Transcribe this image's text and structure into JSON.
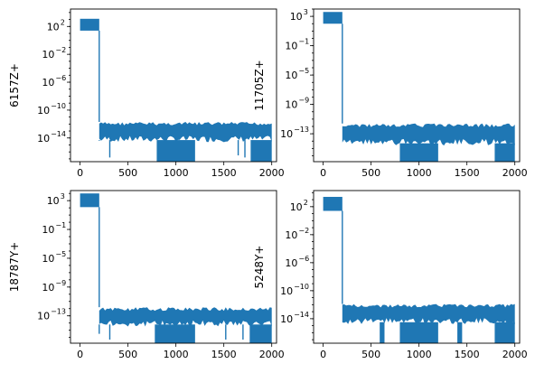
{
  "chart_data": [
    {
      "type": "line",
      "ylabel": "6157Z+",
      "yscale": "log",
      "xlim": [
        -100,
        2050
      ],
      "ylim_exp": [
        -17.4,
        4.5
      ],
      "xticks": [
        0,
        500,
        1000,
        1500,
        2000
      ],
      "yticks": [
        {
          "exp": 2,
          "label": "10"
        },
        {
          "exp": -2,
          "label": "10"
        },
        {
          "exp": -6,
          "label": "10"
        },
        {
          "exp": -10,
          "label": "10"
        },
        {
          "exp": -14,
          "label": "10"
        }
      ],
      "ytick_exps": [
        "2",
        "−2",
        "−6",
        "−10",
        "−14"
      ],
      "high_band": {
        "x": [
          0,
          200
        ],
        "y_exp": [
          1.4,
          3.1
        ]
      },
      "drop_x": 200,
      "drop_spikes": [
        {
          "x": 200,
          "y_exp": -14.4
        }
      ],
      "noise_floor": {
        "x": [
          200,
          2000
        ],
        "y_exp": [
          -14.6,
          -11.7
        ]
      },
      "deep_regions": [
        {
          "x": [
            800,
            1200
          ],
          "y_exp": -17.4
        },
        {
          "x": [
            1780,
            2000
          ],
          "y_exp": -17.4
        }
      ],
      "spikes": [
        {
          "x": 310,
          "y_exp": -16.8
        },
        {
          "x": 1650,
          "y_exp": -16.5
        },
        {
          "x": 1720,
          "y_exp": -16.8
        }
      ],
      "grid": false
    },
    {
      "type": "line",
      "ylabel": "11705Z+",
      "yscale": "log",
      "xlim": [
        -100,
        2050
      ],
      "ylim_exp": [
        -16.8,
        4.0
      ],
      "xticks": [
        0,
        500,
        1000,
        1500,
        2000
      ],
      "yticks": [
        {
          "exp": 3,
          "label": "10"
        },
        {
          "exp": -1,
          "label": "10"
        },
        {
          "exp": -5,
          "label": "10"
        },
        {
          "exp": -9,
          "label": "10"
        },
        {
          "exp": -13,
          "label": "10"
        }
      ],
      "ytick_exps": [
        "3",
        "−1",
        "−5",
        "−9",
        "−13"
      ],
      "high_band": {
        "x": [
          0,
          200
        ],
        "y_exp": [
          2.0,
          3.6
        ]
      },
      "drop_x": 200,
      "drop_spikes": [],
      "noise_floor": {
        "x": [
          200,
          2000
        ],
        "y_exp": [
          -14.6,
          -11.6
        ]
      },
      "deep_regions": [
        {
          "x": [
            800,
            1200
          ],
          "y_exp": -16.8
        },
        {
          "x": [
            1790,
            2000
          ],
          "y_exp": -16.8
        }
      ],
      "spikes": [],
      "grid": false
    },
    {
      "type": "line",
      "ylabel": "18787Y+",
      "yscale": "log",
      "xlim": [
        -100,
        2050
      ],
      "ylim_exp": [
        -16.8,
        4.4
      ],
      "xticks": [
        0,
        500,
        1000,
        1500,
        2000
      ],
      "yticks": [
        {
          "exp": 3,
          "label": "10"
        },
        {
          "exp": -1,
          "label": "10"
        },
        {
          "exp": -5,
          "label": "10"
        },
        {
          "exp": -9,
          "label": "10"
        },
        {
          "exp": -13,
          "label": "10"
        }
      ],
      "ytick_exps": [
        "3",
        "−1",
        "−5",
        "−9",
        "−13"
      ],
      "high_band": {
        "x": [
          0,
          200
        ],
        "y_exp": [
          2.1,
          4.0
        ]
      },
      "drop_x": 200,
      "drop_spikes": [
        {
          "x": 200,
          "y_exp": -15.5
        }
      ],
      "noise_floor": {
        "x": [
          200,
          2000
        ],
        "y_exp": [
          -14.5,
          -11.8
        ]
      },
      "deep_regions": [
        {
          "x": [
            780,
            1200
          ],
          "y_exp": -16.8
        },
        {
          "x": [
            1770,
            2000
          ],
          "y_exp": -16.8
        }
      ],
      "spikes": [
        {
          "x": 310,
          "y_exp": -16.3
        },
        {
          "x": 1520,
          "y_exp": -16.3
        },
        {
          "x": 1700,
          "y_exp": -16.3
        }
      ],
      "grid": false
    },
    {
      "type": "line",
      "ylabel": "5248Y+",
      "yscale": "log",
      "xlim": [
        -100,
        2050
      ],
      "ylim_exp": [
        -17.5,
        4.3
      ],
      "xticks": [
        0,
        500,
        1000,
        1500,
        2000
      ],
      "yticks": [
        {
          "exp": 2,
          "label": "10"
        },
        {
          "exp": -2,
          "label": "10"
        },
        {
          "exp": -6,
          "label": "10"
        },
        {
          "exp": -10,
          "label": "10"
        },
        {
          "exp": -14,
          "label": "10"
        }
      ],
      "ytick_exps": [
        "2",
        "−2",
        "−6",
        "−10",
        "−14"
      ],
      "high_band": {
        "x": [
          0,
          200
        ],
        "y_exp": [
          1.4,
          3.4
        ]
      },
      "drop_x": 200,
      "drop_spikes": [],
      "noise_floor": {
        "x": [
          200,
          2000
        ],
        "y_exp": [
          -14.8,
          -11.9
        ]
      },
      "deep_regions": [
        {
          "x": [
            590,
            640
          ],
          "y_exp": -17.5
        },
        {
          "x": [
            800,
            1200
          ],
          "y_exp": -17.5
        },
        {
          "x": [
            1400,
            1450
          ],
          "y_exp": -17.5
        },
        {
          "x": [
            1790,
            2000
          ],
          "y_exp": -17.5
        }
      ],
      "spikes": [],
      "grid": false
    }
  ],
  "colors": {
    "series": "#1f77b4"
  }
}
